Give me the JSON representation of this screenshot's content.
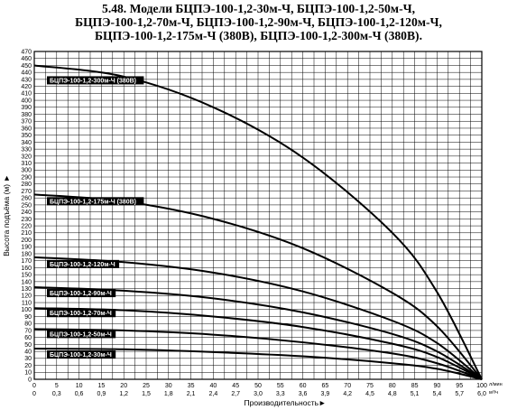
{
  "title_lines": [
    "5.48. Модели БЦПЭ-100-1,2-30м-Ч, БЦПЭ-100-1,2-50м-Ч,",
    "БЦПЭ-100-1,2-70м-Ч, БЦПЭ-100-1,2-90м-Ч, БЦПЭ-100-1,2-120м-Ч,",
    "БЦПЭ-100-1,2-175м-Ч (380В), БЦПЭ-100-1,2-300м-Ч (380В)."
  ],
  "chart_data": {
    "type": "line",
    "ylabel": "Высота подъёма (м) ►",
    "xlabel": "Производительность►",
    "ylim": [
      0,
      470
    ],
    "xlim": [
      0,
      100
    ],
    "y_ticks": [
      0,
      10,
      20,
      30,
      40,
      50,
      60,
      70,
      80,
      90,
      100,
      110,
      120,
      130,
      140,
      150,
      160,
      170,
      180,
      190,
      200,
      210,
      220,
      230,
      240,
      250,
      260,
      270,
      280,
      290,
      300,
      310,
      320,
      330,
      340,
      350,
      360,
      370,
      380,
      390,
      400,
      410,
      420,
      430,
      440,
      450,
      460,
      470
    ],
    "x_ticks_lmin": [
      "0",
      "5",
      "10",
      "15",
      "20",
      "25",
      "30",
      "35",
      "40",
      "45",
      "50",
      "55",
      "60",
      "65",
      "70",
      "75",
      "80",
      "85",
      "90",
      "95",
      "100"
    ],
    "x_ticks_m3h": [
      "0",
      "0,3",
      "0,6",
      "0,9",
      "1,2",
      "1,5",
      "1,8",
      "2,1",
      "2,4",
      "2,7",
      "3,0",
      "3,3",
      "3,6",
      "3,9",
      "4,2",
      "4,5",
      "4,8",
      "5,1",
      "5,4",
      "5,7",
      "6,0"
    ],
    "x_unit_lmin": "л/мин",
    "x_unit_m3h": "м³/ч",
    "grid": true,
    "series": [
      {
        "name": "БЦПЭ-100-1,2-300м-Ч (380В)",
        "x": [
          0,
          20,
          40,
          60,
          80,
          90,
          100
        ],
        "values": [
          450,
          434,
          390,
          318,
          210,
          125,
          0
        ]
      },
      {
        "name": "БЦПЭ-100-1,2-175м-Ч (380В)",
        "x": [
          0,
          20,
          40,
          60,
          80,
          90,
          100
        ],
        "values": [
          265,
          255,
          230,
          188,
          124,
          76,
          0
        ]
      },
      {
        "name": "БЦПЭ-100-1,2-120м-Ч",
        "x": [
          0,
          20,
          40,
          60,
          80,
          90,
          100
        ],
        "values": [
          175,
          168,
          153,
          126,
          84,
          52,
          0
        ]
      },
      {
        "name": "БЦПЭ-100-1,2-90м-Ч",
        "x": [
          0,
          20,
          40,
          60,
          80,
          90,
          100
        ],
        "values": [
          132,
          127,
          116,
          96,
          65,
          40,
          0
        ]
      },
      {
        "name": "БЦПЭ-100-1,2-70м-Ч",
        "x": [
          0,
          20,
          40,
          60,
          80,
          90,
          100
        ],
        "values": [
          102,
          99,
          90,
          75,
          51,
          32,
          0
        ]
      },
      {
        "name": "БЦПЭ-100-1,2-50м-Ч",
        "x": [
          0,
          20,
          40,
          60,
          80,
          90,
          100
        ],
        "values": [
          72,
          70,
          64,
          53,
          37,
          23,
          0
        ]
      },
      {
        "name": "БЦПЭ-100-1,2-30м-Ч",
        "x": [
          0,
          20,
          40,
          60,
          80,
          90,
          100
        ],
        "values": [
          44,
          43,
          39,
          33,
          23,
          15,
          0
        ]
      }
    ]
  }
}
